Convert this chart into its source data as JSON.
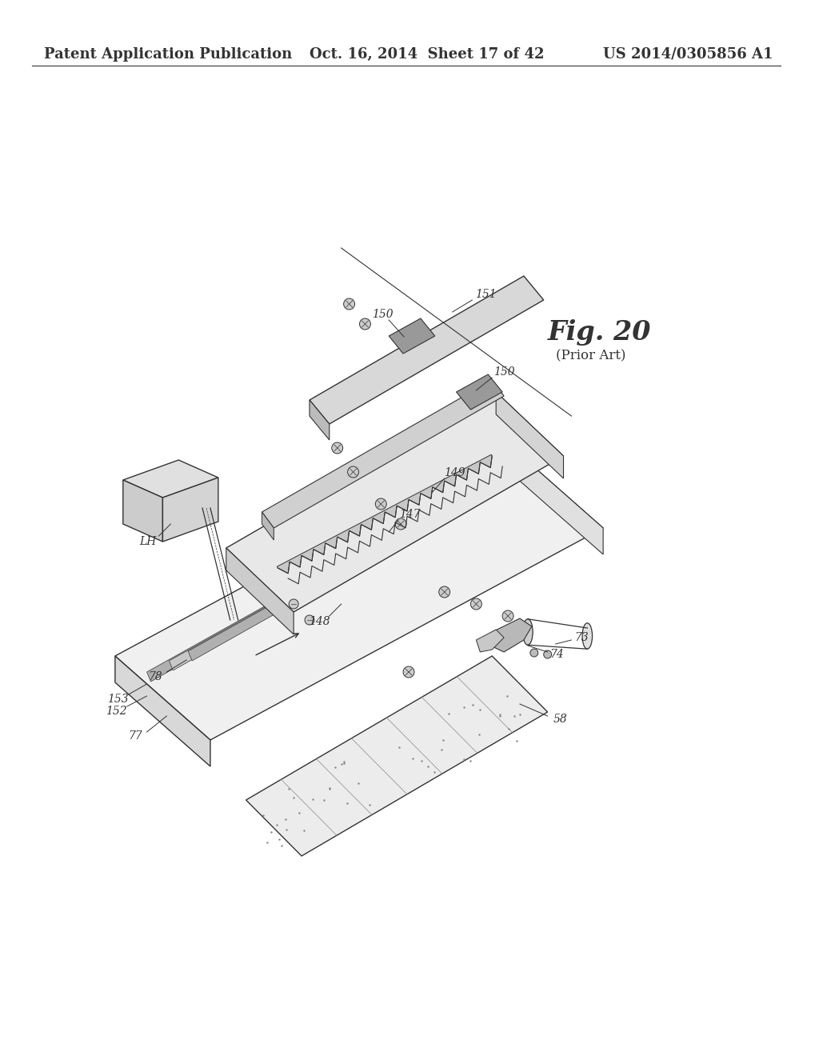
{
  "background_color": "#ffffff",
  "header_left": "Patent Application Publication",
  "header_center": "Oct. 16, 2014  Sheet 17 of 42",
  "header_right": "US 2014/0305856 A1",
  "fig_label": "Fig. 20",
  "fig_sublabel": "(Prior Art)",
  "drawing_color": "#333333",
  "header_fontsize": 13,
  "fig_fontsize": 24,
  "fig_subfontsize": 12
}
